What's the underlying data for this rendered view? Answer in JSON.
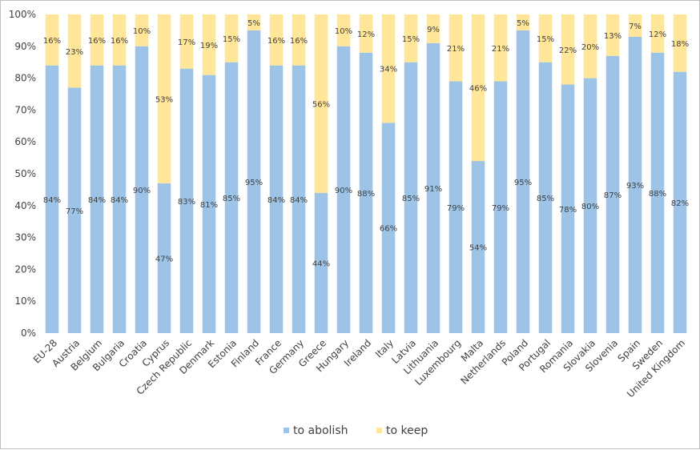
{
  "chart_data": {
    "type": "bar",
    "stacked": true,
    "percent_stacked": true,
    "categories": [
      "EU-28",
      "Austria",
      "Belgium",
      "Bulgaria",
      "Croatia",
      "Cyprus",
      "Czech Republic",
      "Denmark",
      "Estonia",
      "Finland",
      "France",
      "Germany",
      "Greece",
      "Hungary",
      "Ireland",
      "Italy",
      "Latvia",
      "Lithuania",
      "Luxembourg",
      "Malta",
      "Netherlands",
      "Poland",
      "Portugal",
      "Romania",
      "Slovakia",
      "Slovenia",
      "Spain",
      "Sweden",
      "United Kingdom"
    ],
    "series": [
      {
        "name": "to abolish",
        "color": "#9dc3e6",
        "values": [
          84,
          77,
          84,
          84,
          90,
          47,
          83,
          81,
          85,
          95,
          84,
          84,
          44,
          90,
          88,
          66,
          85,
          91,
          79,
          54,
          79,
          95,
          85,
          78,
          80,
          87,
          93,
          88,
          82
        ]
      },
      {
        "name": "to keep",
        "color": "#ffe699",
        "values": [
          16,
          23,
          16,
          16,
          10,
          53,
          17,
          19,
          15,
          5,
          16,
          16,
          56,
          10,
          12,
          34,
          15,
          9,
          21,
          46,
          21,
          5,
          15,
          22,
          20,
          13,
          7,
          12,
          18
        ]
      }
    ],
    "ylim": [
      0,
      100
    ],
    "yticks": [
      "0%",
      "10%",
      "20%",
      "30%",
      "40%",
      "50%",
      "60%",
      "70%",
      "80%",
      "90%",
      "100%"
    ],
    "value_suffix": "%",
    "title": "",
    "xlabel": "",
    "ylabel": "",
    "legend_position": "bottom",
    "grid": false
  }
}
